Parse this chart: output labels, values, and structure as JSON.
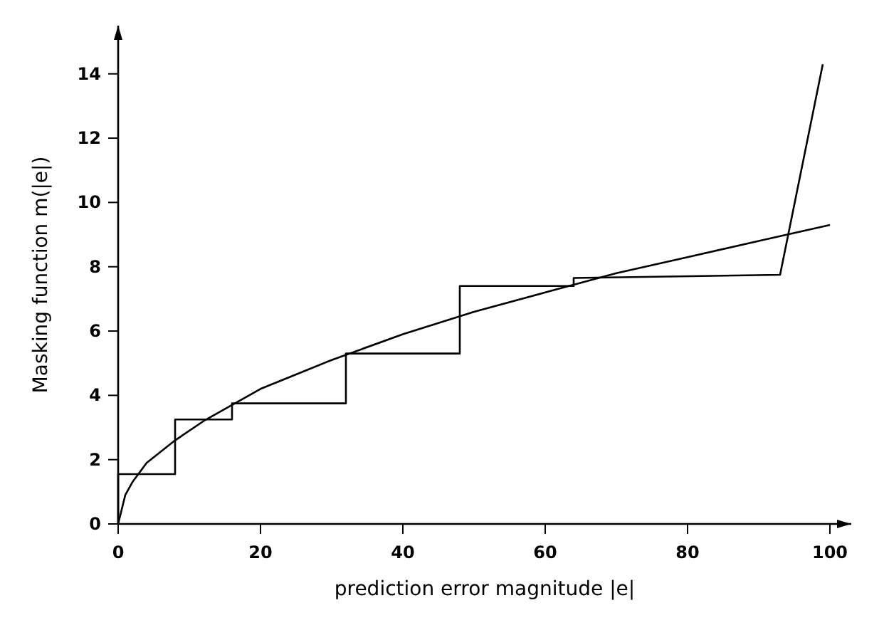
{
  "chart_data": {
    "type": "line",
    "xlabel": "prediction error magnitude  |e|",
    "ylabel": "Masking function  m(|e|)",
    "xlim": [
      0,
      103
    ],
    "ylim": [
      0,
      15.5
    ],
    "xticks": [
      0,
      20,
      40,
      60,
      80,
      100
    ],
    "yticks": [
      0,
      2,
      4,
      6,
      8,
      10,
      12,
      14
    ],
    "grid": false,
    "marker": "none",
    "line_style": "solid",
    "series": [
      {
        "color": "#000000",
        "x": [
          0,
          0,
          8,
          8,
          16,
          16,
          32,
          32,
          48,
          48,
          64,
          64,
          93,
          99
        ],
        "values": [
          0,
          1.55,
          1.55,
          3.25,
          3.25,
          3.75,
          3.75,
          5.3,
          5.3,
          7.4,
          7.4,
          7.65,
          7.75,
          14.3
        ]
      },
      {
        "color": "#000000",
        "x": [
          0,
          1,
          2,
          4,
          8,
          12,
          16,
          20,
          25,
          30,
          40,
          50,
          60,
          70,
          80,
          90,
          100
        ],
        "values": [
          0,
          0.9,
          1.3,
          1.9,
          2.6,
          3.2,
          3.7,
          4.2,
          4.65,
          5.1,
          5.9,
          6.6,
          7.2,
          7.8,
          8.3,
          8.8,
          9.3
        ]
      }
    ]
  }
}
